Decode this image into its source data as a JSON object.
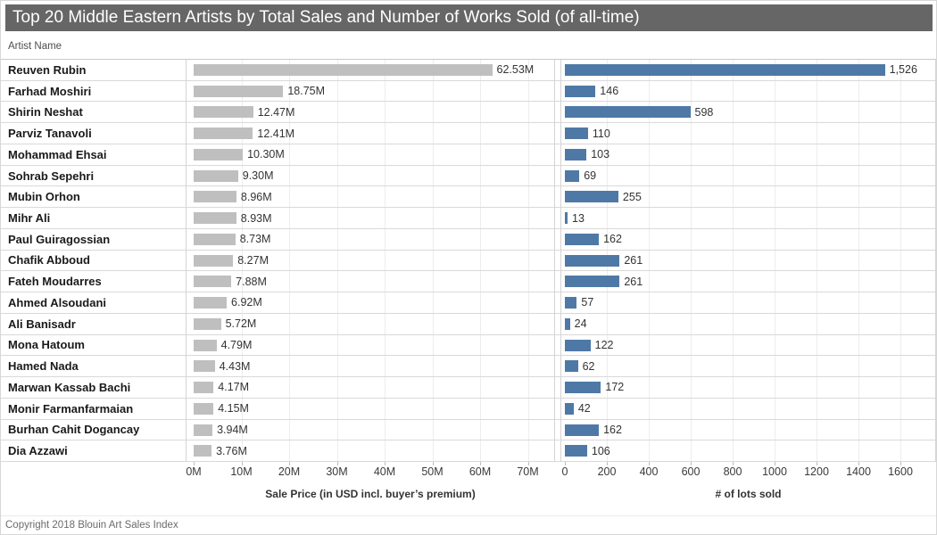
{
  "title": "Top 20 Middle Eastern Artists by Total Sales and Number of Works Sold (of all-time)",
  "table": {
    "column_header": "Artist Name"
  },
  "footer": {
    "copyright": "Copyright 2018 Blouin Art Sales Index"
  },
  "colors": {
    "title_bg": "#666666",
    "sale_bar": "#bfbfbf",
    "lots_bar": "#4e79a7"
  },
  "chart_data": {
    "type": "bar",
    "orientation": "horizontal",
    "grid": "vertical",
    "legend": "none",
    "categories": [
      "Reuven Rubin",
      "Farhad Moshiri",
      "Shirin Neshat",
      "Parviz Tanavoli",
      "Mohammad Ehsai",
      "Sohrab Sepehri",
      "Mubin Orhon",
      "Mihr Ali",
      "Paul Guiragossian",
      "Chafik Abboud",
      "Fateh Moudarres",
      "Ahmed Alsoudani",
      "Ali Banisadr",
      "Mona Hatoum",
      "Hamed Nada",
      "Marwan Kassab Bachi",
      "Monir Farmanfarmaian",
      "Burhan Cahit Dogancay",
      "Dia Azzawi"
    ],
    "series": [
      {
        "name": "Sale Price (in USD incl. buyer’s premium)",
        "unit": "million USD",
        "values": [
          62.53,
          18.75,
          12.47,
          12.41,
          10.3,
          9.3,
          8.96,
          8.93,
          8.73,
          8.27,
          7.88,
          6.92,
          5.72,
          4.79,
          4.43,
          4.17,
          4.15,
          3.94,
          3.76
        ],
        "labels": [
          "62.53M",
          "18.75M",
          "12.47M",
          "12.41M",
          "10.30M",
          "9.30M",
          "8.96M",
          "8.93M",
          "8.73M",
          "8.27M",
          "7.88M",
          "6.92M",
          "5.72M",
          "4.79M",
          "4.43M",
          "4.17M",
          "4.15M",
          "3.94M",
          "3.76M"
        ],
        "axis_ticks": [
          "0M",
          "10M",
          "20M",
          "30M",
          "40M",
          "50M",
          "60M",
          "70M"
        ],
        "axis_range": [
          0,
          75
        ]
      },
      {
        "name": "# of lots sold",
        "unit": "lots",
        "values": [
          1526,
          146,
          598,
          110,
          103,
          69,
          255,
          13,
          162,
          261,
          261,
          57,
          24,
          122,
          62,
          172,
          42,
          162,
          106
        ],
        "labels": [
          "1,526",
          "146",
          "598",
          "110",
          "103",
          "69",
          "255",
          "13",
          "162",
          "261",
          "261",
          "57",
          "24",
          "122",
          "62",
          "172",
          "42",
          "162",
          "106"
        ],
        "axis_ticks": [
          "0",
          "200",
          "400",
          "600",
          "800",
          "1000",
          "1200",
          "1400",
          "1600"
        ],
        "axis_range": [
          0,
          1780
        ]
      }
    ]
  }
}
